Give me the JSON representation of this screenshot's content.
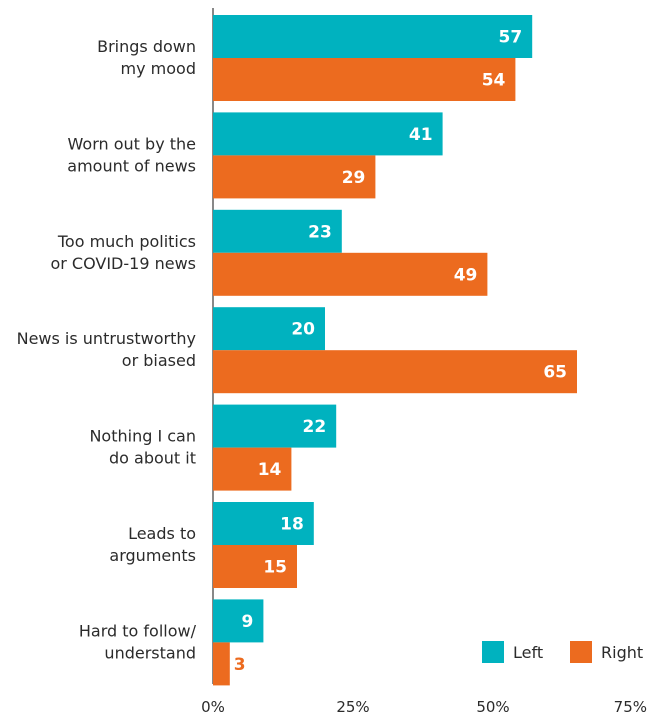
{
  "chart_data": {
    "type": "bar",
    "orientation": "horizontal",
    "categories": [
      [
        "Brings down",
        "my mood"
      ],
      [
        "Worn out by the",
        "amount of news"
      ],
      [
        "Too much politics",
        "or COVID-19 news"
      ],
      [
        "News is untrustworthy",
        "or biased"
      ],
      [
        "Nothing I can",
        "do about it"
      ],
      [
        "Leads to",
        "arguments"
      ],
      [
        "Hard to follow/",
        "understand"
      ]
    ],
    "series": [
      {
        "name": "Left",
        "color": "#00b2bf",
        "values": [
          57,
          41,
          23,
          20,
          22,
          18,
          9
        ]
      },
      {
        "name": "Right",
        "color": "#ec6b1f",
        "values": [
          54,
          29,
          49,
          65,
          14,
          15,
          3
        ]
      }
    ],
    "xlim": [
      0,
      75
    ],
    "x_ticks": [
      0,
      25,
      50,
      75
    ],
    "x_tick_labels": [
      "0%",
      "25%",
      "50%",
      "75%"
    ],
    "grid": false,
    "legend_position": "bottom-right",
    "title": "",
    "xlabel": "",
    "ylabel": ""
  }
}
